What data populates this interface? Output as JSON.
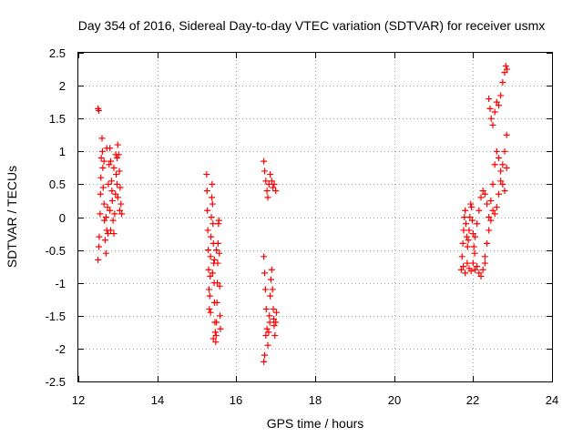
{
  "chart_data": {
    "type": "scatter",
    "title": "Day 354 of 2016, Sidereal Day-to-day VTEC variation (SDTVAR) for receiver usmx",
    "xlabel": "GPS time / hours",
    "ylabel": "SDTVAR / TECUs",
    "xlim": [
      12,
      24
    ],
    "ylim": [
      -2.5,
      2.5
    ],
    "x_ticks": [
      12,
      14,
      16,
      18,
      20,
      22,
      24
    ],
    "y_ticks": [
      -2.5,
      -2,
      -1.5,
      -1,
      -0.5,
      0,
      0.5,
      1,
      1.5,
      2,
      2.5
    ],
    "x_tick_labels": [
      "12",
      "14",
      "16",
      "18",
      "20",
      "22",
      "24"
    ],
    "y_tick_labels": [
      "-2.5",
      "-2",
      "-1.5",
      "-1",
      "-0.5",
      "0",
      "0.5",
      "1",
      "1.5",
      "2",
      "2.5"
    ],
    "grid": true,
    "marker": "plus",
    "color": "#ff0000",
    "series": [
      {
        "name": "SDTVAR",
        "points": [
          [
            12.5,
            1.65
          ],
          [
            12.52,
            1.62
          ],
          [
            12.5,
            -0.65
          ],
          [
            12.52,
            -0.45
          ],
          [
            12.53,
            -0.3
          ],
          [
            12.55,
            0.05
          ],
          [
            12.56,
            0.35
          ],
          [
            12.57,
            0.6
          ],
          [
            12.58,
            0.9
          ],
          [
            12.6,
            1.2
          ],
          [
            12.61,
            1.0
          ],
          [
            12.62,
            0.75
          ],
          [
            12.63,
            0.45
          ],
          [
            12.65,
            0.2
          ],
          [
            12.66,
            -0.05
          ],
          [
            12.68,
            -0.35
          ],
          [
            12.7,
            -0.55
          ],
          [
            12.72,
            -0.2
          ],
          [
            12.74,
            0.15
          ],
          [
            12.76,
            0.5
          ],
          [
            12.78,
            0.8
          ],
          [
            12.8,
            1.05
          ],
          [
            12.82,
            0.85
          ],
          [
            12.84,
            0.55
          ],
          [
            12.86,
            0.25
          ],
          [
            12.88,
            -0.05
          ],
          [
            12.9,
            -0.25
          ],
          [
            12.92,
            0.05
          ],
          [
            12.94,
            0.35
          ],
          [
            12.96,
            0.65
          ],
          [
            12.98,
            0.9
          ],
          [
            13.0,
            1.1
          ],
          [
            13.02,
            0.95
          ],
          [
            13.04,
            0.7
          ],
          [
            13.06,
            0.45
          ],
          [
            13.08,
            0.2
          ],
          [
            13.1,
            0.05
          ],
          [
            12.7,
            0.0
          ],
          [
            12.75,
            -0.25
          ],
          [
            12.8,
            0.1
          ],
          [
            12.85,
            0.4
          ],
          [
            12.9,
            0.75
          ],
          [
            12.95,
            0.95
          ],
          [
            13.0,
            0.3
          ],
          [
            13.05,
            0.1
          ],
          [
            12.65,
            0.85
          ],
          [
            12.72,
            1.05
          ],
          [
            12.82,
            -0.2
          ],
          [
            12.98,
            0.5
          ],
          [
            15.25,
            0.65
          ],
          [
            15.26,
            0.4
          ],
          [
            15.27,
            0.1
          ],
          [
            15.28,
            -0.2
          ],
          [
            15.29,
            -0.5
          ],
          [
            15.3,
            -0.8
          ],
          [
            15.31,
            -1.1
          ],
          [
            15.32,
            -1.4
          ],
          [
            15.33,
            -1.2
          ],
          [
            15.34,
            -0.9
          ],
          [
            15.35,
            -0.6
          ],
          [
            15.36,
            -0.3
          ],
          [
            15.37,
            0.0
          ],
          [
            15.38,
            0.3
          ],
          [
            15.39,
            0.5
          ],
          [
            15.4,
            0.2
          ],
          [
            15.41,
            -0.1
          ],
          [
            15.42,
            -0.4
          ],
          [
            15.43,
            -0.7
          ],
          [
            15.44,
            -1.0
          ],
          [
            15.45,
            -1.3
          ],
          [
            15.46,
            -1.6
          ],
          [
            15.47,
            -1.75
          ],
          [
            15.48,
            -1.9
          ],
          [
            15.49,
            -1.8
          ],
          [
            15.5,
            -1.6
          ],
          [
            15.51,
            -1.3
          ],
          [
            15.52,
            -1.0
          ],
          [
            15.53,
            -0.7
          ],
          [
            15.54,
            -0.4
          ],
          [
            15.55,
            -0.1
          ],
          [
            15.56,
            -0.05
          ],
          [
            15.57,
            -0.55
          ],
          [
            15.58,
            -1.05
          ],
          [
            15.59,
            -1.5
          ],
          [
            15.6,
            -1.7
          ],
          [
            15.4,
            -0.85
          ],
          [
            15.45,
            -0.65
          ],
          [
            15.5,
            -0.5
          ],
          [
            15.35,
            -1.45
          ],
          [
            15.42,
            -1.85
          ],
          [
            16.7,
            0.85
          ],
          [
            16.72,
            0.7
          ],
          [
            16.75,
            0.55
          ],
          [
            16.78,
            0.4
          ],
          [
            16.8,
            0.3
          ],
          [
            16.83,
            0.5
          ],
          [
            16.86,
            0.65
          ],
          [
            16.9,
            0.55
          ],
          [
            16.93,
            0.45
          ],
          [
            16.96,
            0.5
          ],
          [
            17.0,
            0.4
          ],
          [
            16.7,
            -0.6
          ],
          [
            16.72,
            -0.85
          ],
          [
            16.74,
            -1.1
          ],
          [
            16.76,
            -1.4
          ],
          [
            16.78,
            -1.7
          ],
          [
            16.8,
            -1.95
          ],
          [
            16.72,
            -2.1
          ],
          [
            16.7,
            -2.2
          ],
          [
            16.82,
            -1.75
          ],
          [
            16.84,
            -1.5
          ],
          [
            16.86,
            -1.2
          ],
          [
            16.88,
            -0.95
          ],
          [
            16.9,
            -0.8
          ],
          [
            16.92,
            -1.1
          ],
          [
            16.94,
            -1.4
          ],
          [
            16.96,
            -1.65
          ],
          [
            16.98,
            -1.8
          ],
          [
            17.0,
            -1.6
          ],
          [
            17.02,
            -1.45
          ],
          [
            16.75,
            -1.8
          ],
          [
            16.85,
            -1.6
          ],
          [
            16.95,
            -1.55
          ],
          [
            21.7,
            -0.8
          ],
          [
            21.72,
            -0.6
          ],
          [
            21.74,
            -0.4
          ],
          [
            21.76,
            -0.2
          ],
          [
            21.78,
            0.0
          ],
          [
            21.8,
            0.1
          ],
          [
            21.82,
            -0.1
          ],
          [
            21.84,
            -0.3
          ],
          [
            21.86,
            -0.45
          ],
          [
            21.88,
            -0.35
          ],
          [
            21.9,
            -0.2
          ],
          [
            21.92,
            0.0
          ],
          [
            21.94,
            0.2
          ],
          [
            21.96,
            0.15
          ],
          [
            21.98,
            -0.05
          ],
          [
            22.0,
            -0.25
          ],
          [
            22.02,
            -0.45
          ],
          [
            22.04,
            -0.55
          ],
          [
            21.75,
            -0.75
          ],
          [
            21.8,
            -0.85
          ],
          [
            21.85,
            -0.7
          ],
          [
            21.9,
            -0.78
          ],
          [
            21.95,
            -0.82
          ],
          [
            22.0,
            -0.7
          ],
          [
            22.05,
            -0.8
          ],
          [
            22.1,
            -0.75
          ],
          [
            22.15,
            -0.85
          ],
          [
            22.2,
            -0.9
          ],
          [
            22.25,
            -0.8
          ],
          [
            22.3,
            -0.7
          ],
          [
            22.05,
            -0.3
          ],
          [
            22.1,
            -0.1
          ],
          [
            22.15,
            0.1
          ],
          [
            22.2,
            0.3
          ],
          [
            22.25,
            0.4
          ],
          [
            22.3,
            0.35
          ],
          [
            22.35,
            0.2
          ],
          [
            22.4,
            0.0
          ],
          [
            22.45,
            0.25
          ],
          [
            22.5,
            0.5
          ],
          [
            22.55,
            0.8
          ],
          [
            22.6,
            1.0
          ],
          [
            22.65,
            0.9
          ],
          [
            22.7,
            0.7
          ],
          [
            22.75,
            0.5
          ],
          [
            22.8,
            0.4
          ],
          [
            22.85,
            0.75
          ],
          [
            22.3,
            -0.6
          ],
          [
            22.35,
            -0.4
          ],
          [
            22.4,
            -0.2
          ],
          [
            22.45,
            -0.05
          ],
          [
            22.5,
            0.1
          ],
          [
            22.55,
            0.05
          ],
          [
            22.6,
            0.15
          ],
          [
            22.65,
            0.35
          ],
          [
            22.7,
            0.55
          ],
          [
            22.75,
            0.8
          ],
          [
            22.8,
            1.0
          ],
          [
            22.85,
            1.25
          ],
          [
            22.4,
            1.8
          ],
          [
            22.43,
            1.65
          ],
          [
            22.46,
            1.5
          ],
          [
            22.5,
            1.4
          ],
          [
            22.55,
            1.6
          ],
          [
            22.6,
            1.75
          ],
          [
            22.65,
            1.7
          ],
          [
            22.7,
            1.85
          ],
          [
            22.75,
            2.05
          ],
          [
            22.8,
            2.2
          ],
          [
            22.83,
            2.3
          ],
          [
            22.86,
            2.25
          ]
        ]
      }
    ]
  }
}
